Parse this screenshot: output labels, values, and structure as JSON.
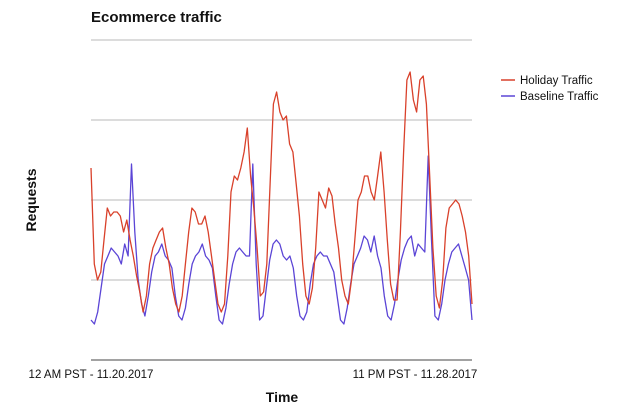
{
  "chart_data": {
    "type": "line",
    "title": "Ecommerce traffic",
    "xlabel": "Time",
    "ylabel": "Requests",
    "x_tick_labels": [
      "12 AM PST - 11.20.2017",
      "11 PM PST - 11.28.2017"
    ],
    "ylim": [
      0,
      4
    ],
    "gridlines": [
      1,
      2,
      3,
      4
    ],
    "grid": true,
    "legend_position": "right",
    "series": [
      {
        "name": "Holiday Traffic",
        "color": "#d9412b",
        "values": [
          2.4,
          1.2,
          1.0,
          1.1,
          1.5,
          1.9,
          1.8,
          1.85,
          1.85,
          1.8,
          1.6,
          1.75,
          1.5,
          1.3,
          1.05,
          0.85,
          0.6,
          0.8,
          1.2,
          1.4,
          1.5,
          1.6,
          1.65,
          1.4,
          1.2,
          0.9,
          0.7,
          0.6,
          0.8,
          1.2,
          1.6,
          1.9,
          1.85,
          1.7,
          1.7,
          1.8,
          1.6,
          1.3,
          1.0,
          0.7,
          0.6,
          0.7,
          1.3,
          2.1,
          2.3,
          2.25,
          2.4,
          2.6,
          2.9,
          2.3,
          1.9,
          1.4,
          0.8,
          0.85,
          1.2,
          2.2,
          3.2,
          3.35,
          3.1,
          3.0,
          3.05,
          2.7,
          2.6,
          2.2,
          1.8,
          1.2,
          0.8,
          0.7,
          0.9,
          1.4,
          2.1,
          2.0,
          1.9,
          2.15,
          2.05,
          1.7,
          1.4,
          1.0,
          0.8,
          0.7,
          1.0,
          1.5,
          2.0,
          2.1,
          2.3,
          2.3,
          2.1,
          2.0,
          2.3,
          2.6,
          2.1,
          1.5,
          0.95,
          0.75,
          0.75,
          1.6,
          2.6,
          3.5,
          3.6,
          3.25,
          3.1,
          3.5,
          3.55,
          3.2,
          2.3,
          1.4,
          0.8,
          0.65,
          1.0,
          1.65,
          1.9,
          1.95,
          2.0,
          1.95,
          1.8,
          1.6,
          1.3,
          0.7
        ]
      },
      {
        "name": "Baseline Traffic",
        "color": "#5b45d6",
        "values": [
          0.5,
          0.45,
          0.6,
          0.9,
          1.2,
          1.3,
          1.4,
          1.35,
          1.3,
          1.2,
          1.45,
          1.3,
          2.45,
          1.6,
          1.0,
          0.7,
          0.55,
          0.8,
          1.1,
          1.3,
          1.35,
          1.45,
          1.3,
          1.25,
          1.15,
          0.8,
          0.55,
          0.5,
          0.65,
          0.95,
          1.2,
          1.3,
          1.35,
          1.45,
          1.3,
          1.25,
          1.15,
          0.8,
          0.5,
          0.45,
          0.65,
          0.95,
          1.2,
          1.35,
          1.4,
          1.35,
          1.3,
          1.3,
          2.45,
          1.2,
          0.5,
          0.55,
          0.9,
          1.25,
          1.45,
          1.5,
          1.45,
          1.3,
          1.25,
          1.3,
          1.15,
          0.8,
          0.55,
          0.5,
          0.6,
          0.95,
          1.2,
          1.3,
          1.35,
          1.3,
          1.3,
          1.2,
          1.1,
          0.8,
          0.5,
          0.45,
          0.65,
          0.95,
          1.2,
          1.3,
          1.4,
          1.55,
          1.5,
          1.35,
          1.55,
          1.3,
          1.15,
          0.8,
          0.55,
          0.5,
          0.7,
          1.0,
          1.25,
          1.4,
          1.5,
          1.55,
          1.3,
          1.45,
          1.4,
          1.35,
          2.55,
          1.5,
          0.55,
          0.5,
          0.7,
          1.0,
          1.2,
          1.35,
          1.4,
          1.45,
          1.3,
          1.15,
          1.0,
          0.5
        ]
      }
    ]
  }
}
